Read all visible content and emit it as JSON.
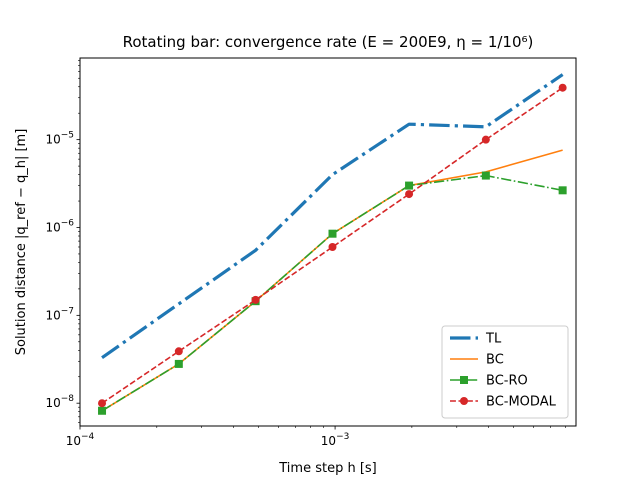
{
  "chart_data": {
    "type": "line",
    "title": "Rotating bar: convergence rate (E = 200E9, η = 1/10⁶)",
    "xlabel": "Time step h [s]",
    "ylabel": "Solution distance |q_ref − q_h| [m]",
    "xscale": "log",
    "yscale": "log",
    "xlim": [
      0.0001,
      0.0088
    ],
    "ylim": [
      5.5e-09,
      8.5e-05
    ],
    "x_ticks": [
      {
        "value": 0.0001,
        "mantissa": "10",
        "exp": "−4"
      },
      {
        "value": 0.001,
        "mantissa": "10",
        "exp": "−3"
      }
    ],
    "y_ticks": [
      {
        "value": 1e-08,
        "mantissa": "10",
        "exp": "−8"
      },
      {
        "value": 1e-07,
        "mantissa": "10",
        "exp": "−7"
      },
      {
        "value": 1e-06,
        "mantissa": "10",
        "exp": "−6"
      },
      {
        "value": 1e-05,
        "mantissa": "10",
        "exp": "−5"
      }
    ],
    "grid": false,
    "legend": "lower-right",
    "x": [
      0.000122,
      0.000244,
      0.000488,
      0.000977,
      0.00195,
      0.0039,
      0.0078
    ],
    "series": [
      {
        "name": "TL",
        "values": [
          3.3e-08,
          1.35e-07,
          5.5e-07,
          4e-06,
          1.5e-05,
          1.4e-05,
          5.5e-05
        ],
        "color": "#1f77b4",
        "style": "dashdot",
        "marker": "none",
        "width": 3.2
      },
      {
        "name": "BC",
        "values": [
          8.2e-09,
          2.8e-08,
          1.45e-07,
          8.5e-07,
          3e-06,
          4.3e-06,
          7.6e-06
        ],
        "color": "#ff7f0e",
        "style": "solid",
        "marker": "none",
        "width": 1.6
      },
      {
        "name": "BC-RO",
        "values": [
          8.2e-09,
          2.8e-08,
          1.45e-07,
          8.5e-07,
          3e-06,
          3.9e-06,
          2.65e-06
        ],
        "color": "#2ca02c",
        "style": "dashdot",
        "marker": "square",
        "width": 1.6
      },
      {
        "name": "BC-MODAL",
        "values": [
          1e-08,
          3.9e-08,
          1.5e-07,
          6e-07,
          2.4e-06,
          1e-05,
          3.9e-05
        ],
        "color": "#d62728",
        "style": "dashed",
        "marker": "circle",
        "width": 1.6
      }
    ]
  }
}
